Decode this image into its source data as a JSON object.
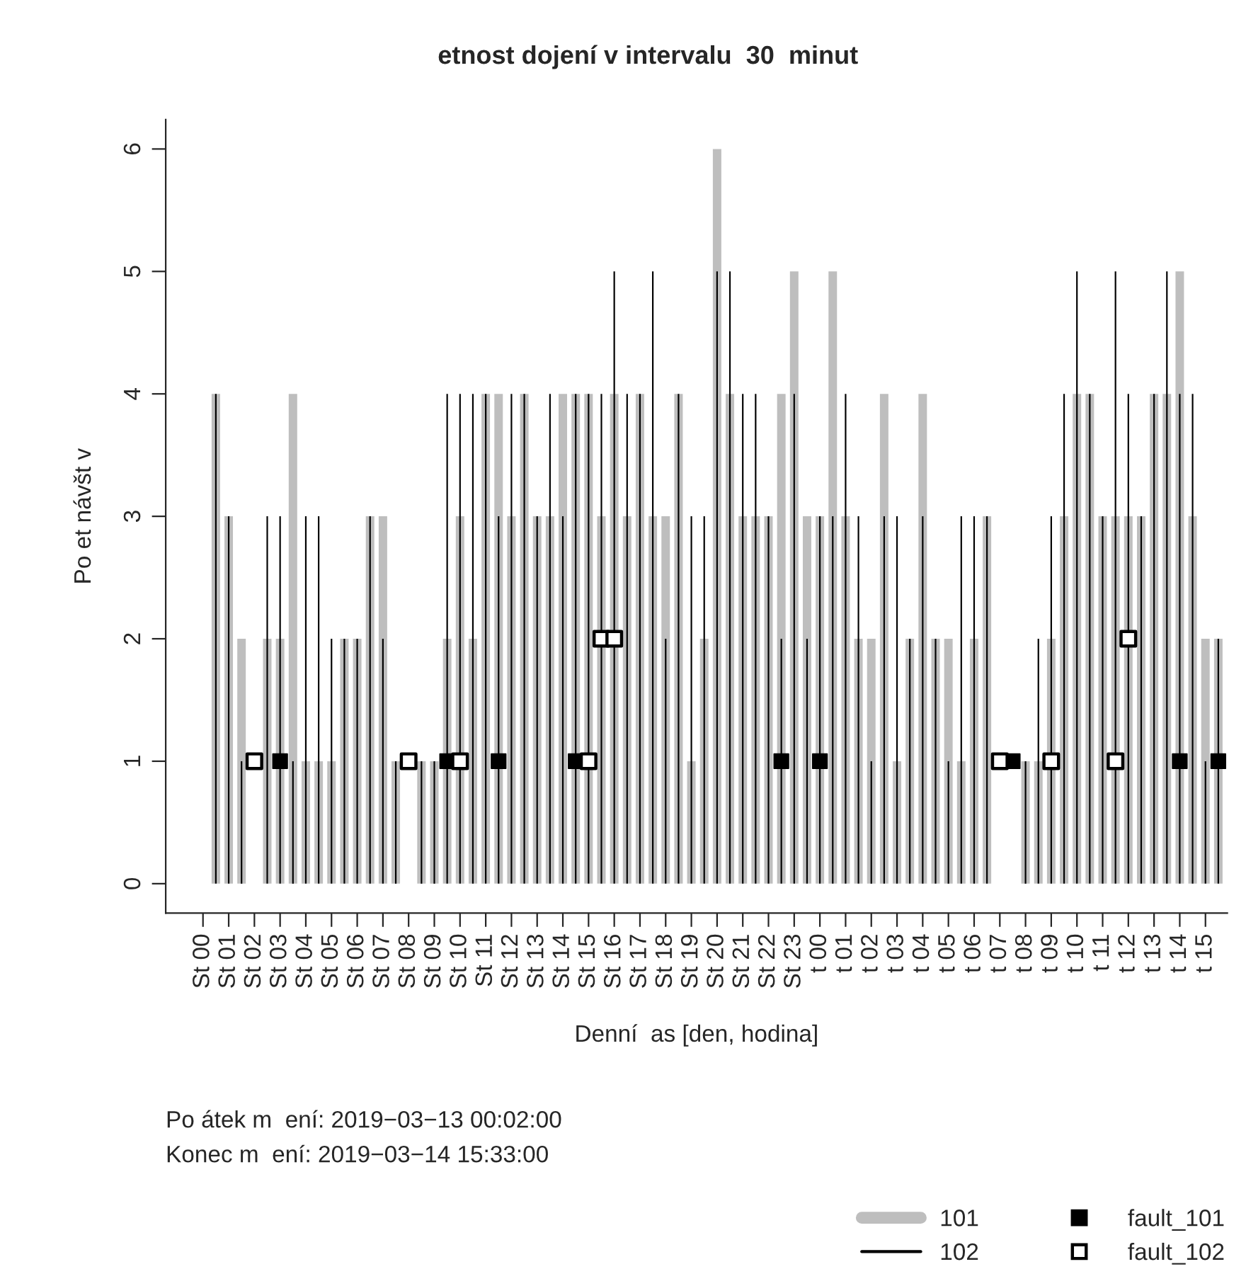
{
  "chart_data": {
    "type": "bar",
    "title": "etnost dojení v intervalu  30  minut",
    "xlabel": "Denní  as [den, hodina]",
    "ylabel": "Po et návšt v",
    "annotations": [
      "Po átek m  ení: 2019−03−13 00:02:00",
      "Konec m  ení: 2019−03−14 15:33:00"
    ],
    "categories": [
      "St 00",
      null,
      "St 01",
      null,
      "St 02",
      null,
      "St 03",
      null,
      "St 04",
      null,
      "St 05",
      null,
      "St 06",
      null,
      "St 07",
      null,
      "St 08",
      null,
      "St 09",
      null,
      "St 10",
      null,
      "St 11",
      null,
      "St 12",
      null,
      "St 13",
      null,
      "St 14",
      null,
      "St 15",
      null,
      "St 16",
      null,
      "St 17",
      null,
      "St 18",
      null,
      "St 19",
      null,
      "St 20",
      null,
      "St 21",
      null,
      "St 22",
      null,
      "St 23",
      null,
      "t 00",
      null,
      "t 01",
      null,
      "t 02",
      null,
      "t 03",
      null,
      "t 04",
      null,
      "t 05",
      null,
      "t 06",
      null,
      "t 07",
      null,
      "t 08",
      null,
      "t 09",
      null,
      "t 10",
      null,
      "t 11",
      null,
      "t 12",
      null,
      "t 13",
      null,
      "t 14",
      null,
      "t 15",
      null
    ],
    "series": [
      {
        "name": "101",
        "color": "#bebebe",
        "values": [
          0,
          4,
          3,
          2,
          null,
          2,
          2,
          4,
          1,
          1,
          1,
          2,
          2,
          3,
          3,
          1,
          null,
          1,
          1,
          2,
          3,
          2,
          4,
          4,
          3,
          4,
          3,
          3,
          4,
          4,
          4,
          3,
          4,
          3,
          4,
          3,
          3,
          4,
          1,
          2,
          6,
          4,
          3,
          3,
          3,
          4,
          5,
          3,
          3,
          5,
          3,
          2,
          2,
          4,
          1,
          2,
          4,
          2,
          2,
          1,
          2,
          3,
          null,
          null,
          1,
          1,
          2,
          3,
          4,
          4,
          3,
          3,
          3,
          3,
          4,
          4,
          5,
          3,
          2,
          2
        ]
      },
      {
        "name": "102",
        "color": "#000000",
        "values": [
          0,
          4,
          3,
          1,
          null,
          3,
          3,
          1,
          3,
          3,
          2,
          2,
          2,
          3,
          2,
          1,
          null,
          1,
          1,
          4,
          4,
          4,
          4,
          3,
          4,
          4,
          3,
          4,
          3,
          4,
          4,
          4,
          5,
          4,
          4,
          5,
          2,
          4,
          3,
          3,
          5,
          5,
          4,
          4,
          3,
          2,
          4,
          2,
          3,
          3,
          4,
          3,
          1,
          3,
          3,
          2,
          3,
          2,
          1,
          3,
          3,
          3,
          null,
          null,
          1,
          2,
          3,
          4,
          5,
          4,
          3,
          5,
          4,
          3,
          4,
          5,
          4,
          4,
          1,
          2
        ]
      },
      {
        "name": "fault_101",
        "type": "scatter",
        "color": "#000000",
        "values": [
          null,
          null,
          null,
          null,
          null,
          null,
          1,
          null,
          null,
          null,
          null,
          null,
          null,
          null,
          null,
          null,
          null,
          null,
          null,
          1,
          null,
          null,
          null,
          1,
          null,
          null,
          null,
          null,
          null,
          1,
          null,
          null,
          null,
          null,
          null,
          null,
          null,
          null,
          null,
          null,
          null,
          null,
          null,
          null,
          null,
          1,
          null,
          null,
          1,
          null,
          null,
          null,
          null,
          null,
          null,
          null,
          null,
          null,
          null,
          null,
          null,
          null,
          null,
          1,
          null,
          null,
          null,
          null,
          null,
          null,
          null,
          null,
          null,
          null,
          null,
          null,
          1,
          null,
          null,
          1
        ]
      },
      {
        "name": "fault_102",
        "type": "scatter",
        "color": "#000000",
        "values": [
          null,
          null,
          null,
          null,
          1,
          null,
          null,
          null,
          null,
          null,
          null,
          null,
          null,
          null,
          null,
          null,
          1,
          null,
          null,
          null,
          1,
          null,
          null,
          null,
          null,
          null,
          null,
          null,
          null,
          null,
          1,
          2,
          2,
          null,
          null,
          null,
          null,
          null,
          null,
          null,
          null,
          null,
          null,
          null,
          null,
          null,
          null,
          null,
          null,
          null,
          null,
          null,
          null,
          null,
          null,
          null,
          null,
          null,
          null,
          null,
          null,
          null,
          1,
          null,
          null,
          null,
          1,
          null,
          null,
          null,
          null,
          1,
          2,
          null,
          null,
          null,
          null,
          null,
          null,
          null
        ]
      }
    ],
    "ylim": [
      -0.24,
      6.24
    ],
    "yticks": [
      0,
      1,
      2,
      3,
      4,
      5,
      6
    ],
    "grid": false,
    "legend": "bottom right",
    "marker": "square"
  }
}
